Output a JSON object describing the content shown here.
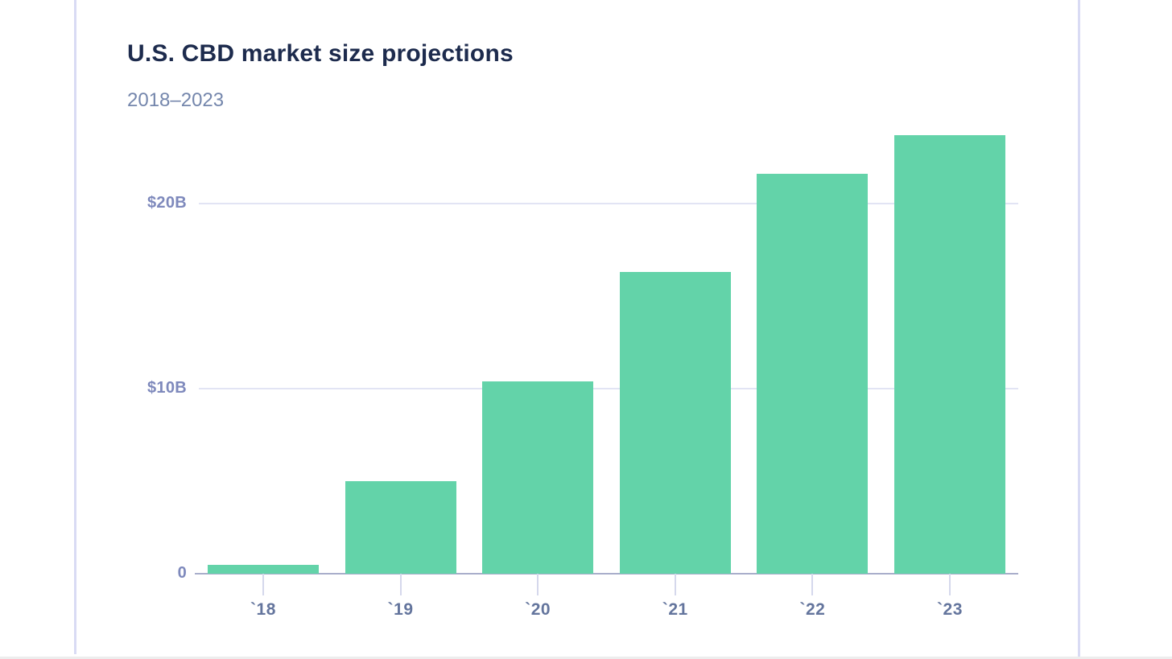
{
  "chart_data": {
    "type": "bar",
    "title": "U.S. CBD market size projections",
    "subtitle": "2018–2023",
    "categories": [
      "`18",
      "`19",
      "`20",
      "`21",
      "`22",
      "`23"
    ],
    "values": [
      0.5,
      5.0,
      10.4,
      16.3,
      21.6,
      23.7
    ],
    "value_unit": "$B",
    "bar_color": "#63d3a9",
    "yticks": [
      {
        "label": "$20B",
        "value": 20
      },
      {
        "label": "$10B",
        "value": 10
      },
      {
        "label": "0",
        "value": 0
      }
    ],
    "ylim": [
      0,
      24.7
    ],
    "grid": "horizontal",
    "legend": "none"
  },
  "colors": {
    "title": "#1d2b4d",
    "subtitle": "#7486ac",
    "ytick_label": "#7e89bc",
    "xtick_label": "#64759d",
    "gridline": "#e2e4f4",
    "axis_line": "#a9aecb",
    "tick_mark": "#d5d8ec",
    "border_rule": "#d9dbf4",
    "bottom_rule": "#ededed"
  }
}
